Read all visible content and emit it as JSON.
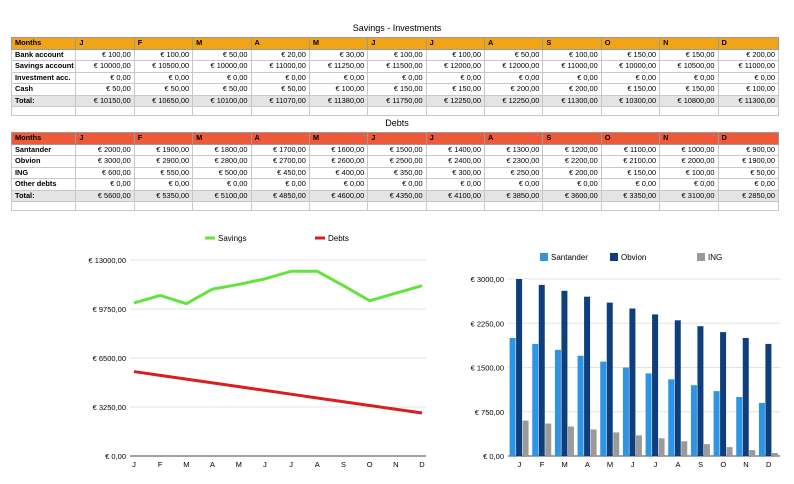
{
  "savings": {
    "title": "Savings - Investments",
    "header": [
      "Months",
      "J",
      "F",
      "M",
      "A",
      "M",
      "J",
      "J",
      "A",
      "S",
      "O",
      "N",
      "D"
    ],
    "rows": [
      {
        "label": "Bank account",
        "values": [
          "€ 100,00",
          "€ 100,00",
          "€ 50,00",
          "€ 20,00",
          "€ 30,00",
          "€ 100,00",
          "€ 100,00",
          "€ 50,00",
          "€ 100,00",
          "€ 150,00",
          "€ 150,00",
          "€ 200,00"
        ]
      },
      {
        "label": "Savings account",
        "values": [
          "€ 10000,00",
          "€ 10500,00",
          "€ 10000,00",
          "€ 11000,00",
          "€ 11250,00",
          "€ 11500,00",
          "€ 12000,00",
          "€ 12000,00",
          "€ 11000,00",
          "€ 10000,00",
          "€ 10500,00",
          "€ 11000,00"
        ]
      },
      {
        "label": "Investment acc.",
        "values": [
          "€ 0,00",
          "€ 0,00",
          "€ 0,00",
          "€ 0,00",
          "€ 0,00",
          "€ 0,00",
          "€ 0,00",
          "€ 0,00",
          "€ 0,00",
          "€ 0,00",
          "€ 0,00",
          "€ 0,00"
        ]
      },
      {
        "label": "Cash",
        "values": [
          "€ 50,00",
          "€ 50,00",
          "€ 50,00",
          "€ 50,00",
          "€ 100,00",
          "€ 150,00",
          "€ 150,00",
          "€ 200,00",
          "€ 200,00",
          "€ 150,00",
          "€ 150,00",
          "€ 100,00"
        ]
      },
      {
        "label": "Total:",
        "values": [
          "€ 10150,00",
          "€ 10650,00",
          "€ 10100,00",
          "€ 11070,00",
          "€ 11380,00",
          "€ 11750,00",
          "€ 12250,00",
          "€ 12250,00",
          "€ 11300,00",
          "€ 10300,00",
          "€ 10800,00",
          "€ 11300,00"
        ]
      }
    ]
  },
  "debts": {
    "title": "Debts",
    "header": [
      "Months",
      "J",
      "F",
      "M",
      "A",
      "M",
      "J",
      "J",
      "A",
      "S",
      "O",
      "N",
      "D"
    ],
    "rows": [
      {
        "label": "Santander",
        "values": [
          "€ 2000,00",
          "€ 1900,00",
          "€ 1800,00",
          "€ 1700,00",
          "€ 1600,00",
          "€ 1500,00",
          "€ 1400,00",
          "€ 1300,00",
          "€ 1200,00",
          "€ 1100,00",
          "€ 1000,00",
          "€ 900,00"
        ]
      },
      {
        "label": "Obvion",
        "values": [
          "€ 3000,00",
          "€ 2900,00",
          "€ 2800,00",
          "€ 2700,00",
          "€ 2600,00",
          "€ 2500,00",
          "€ 2400,00",
          "€ 2300,00",
          "€ 2200,00",
          "€ 2100,00",
          "€ 2000,00",
          "€ 1900,00"
        ]
      },
      {
        "label": "ING",
        "values": [
          "€ 600,00",
          "€ 550,00",
          "€ 500,00",
          "€ 450,00",
          "€ 400,00",
          "€ 350,00",
          "€ 300,00",
          "€ 250,00",
          "€ 200,00",
          "€ 150,00",
          "€ 100,00",
          "€ 50,00"
        ]
      },
      {
        "label": "Other debts",
        "values": [
          "€ 0,00",
          "€ 0,00",
          "€ 0,00",
          "€ 0,00",
          "€ 0,00",
          "€ 0,00",
          "€ 0,00",
          "€ 0,00",
          "€ 0,00",
          "€ 0,00",
          "€ 0,00",
          "€ 0,00"
        ]
      },
      {
        "label": "Total:",
        "values": [
          "€ 5600,00",
          "€ 5350,00",
          "€ 5100,00",
          "€ 4850,00",
          "€ 4600,00",
          "€ 4350,00",
          "€ 4100,00",
          "€ 3850,00",
          "€ 3600,00",
          "€ 3350,00",
          "€ 3100,00",
          "€ 2850,00"
        ]
      }
    ]
  },
  "chart_data": [
    {
      "type": "line",
      "categories": [
        "J",
        "F",
        "M",
        "A",
        "M",
        "J",
        "J",
        "A",
        "S",
        "O",
        "N",
        "D"
      ],
      "series": [
        {
          "name": "Savings",
          "color": "#66e23f",
          "values": [
            10150,
            10650,
            10100,
            11070,
            11380,
            11750,
            12250,
            12250,
            11300,
            10300,
            10800,
            11300
          ]
        },
        {
          "name": "Debts",
          "color": "#d81f1f",
          "values": [
            5600,
            5350,
            5100,
            4850,
            4600,
            4350,
            4100,
            3850,
            3600,
            3350,
            3100,
            2850
          ]
        }
      ],
      "ylim": [
        0,
        13000
      ],
      "yticks": [
        0,
        3250,
        6500,
        9750,
        13000
      ],
      "ytick_labels": [
        "€ 0,00",
        "€ 3250,00",
        "€ 6500,00",
        "€ 9750,00",
        "€ 13000,00"
      ],
      "grid": true,
      "legend": "top"
    },
    {
      "type": "bar",
      "categories": [
        "J",
        "F",
        "M",
        "A",
        "M",
        "J",
        "J",
        "A",
        "S",
        "O",
        "N",
        "D"
      ],
      "series": [
        {
          "name": "Santander",
          "color": "#2e94e4",
          "values": [
            2000,
            1900,
            1800,
            1700,
            1600,
            1500,
            1400,
            1300,
            1200,
            1100,
            1000,
            900
          ]
        },
        {
          "name": "Obvion",
          "color": "#0e3f7c",
          "values": [
            3000,
            2900,
            2800,
            2700,
            2600,
            2500,
            2400,
            2300,
            2200,
            2100,
            2000,
            1900
          ]
        },
        {
          "name": "ING",
          "color": "#9a9a9a",
          "values": [
            600,
            550,
            500,
            450,
            400,
            350,
            300,
            250,
            200,
            150,
            100,
            50
          ]
        }
      ],
      "ylim": [
        0,
        3000
      ],
      "yticks": [
        0,
        750,
        1500,
        2250,
        3000
      ],
      "ytick_labels": [
        "€ 0,00",
        "€ 750,00",
        "€ 1500,00",
        "€ 2250,00",
        "€ 3000,00"
      ],
      "grid": true,
      "legend": "top"
    }
  ]
}
